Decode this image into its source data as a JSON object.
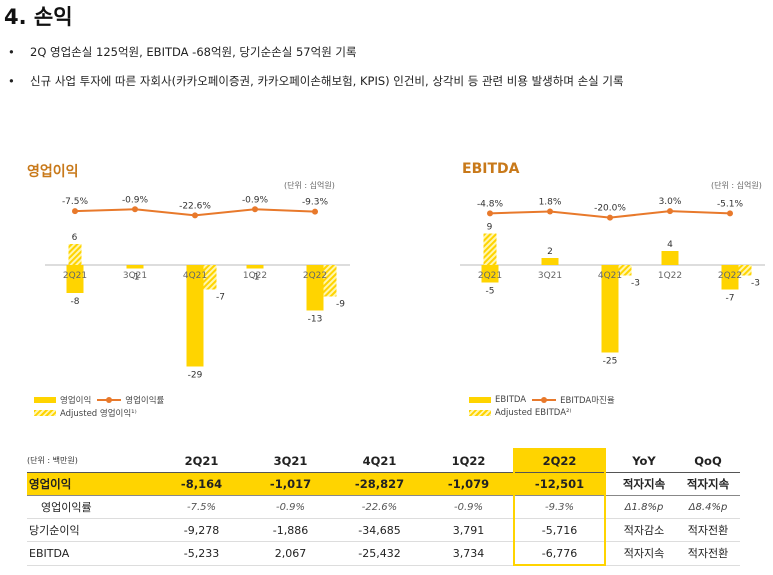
{
  "page": {
    "title": "4. 손익",
    "bullets": [
      "2Q 영업손실 125억원, EBITDA -68억원, 당기순손실 57억원 기록",
      "신규 사업 투자에 따른 자회사(카카오페이증권, 카카오페이손해보험, KPIS) 인건비, 상각비 등 관련 비용 발생하며 손실 기록"
    ]
  },
  "charts": {
    "left": {
      "title": "영업이익",
      "unit": "(단위 : 십억원)",
      "legend": [
        "영업이익",
        "영업이익률",
        "Adjusted 영업이익¹⁾"
      ]
    },
    "right": {
      "title": "EBITDA",
      "unit": "(단위 : 십억원)",
      "legend": [
        "EBITDA",
        "EBITDA마진율",
        "Adjusted EBITDA²⁾"
      ]
    }
  },
  "chart_data": [
    {
      "type": "bar",
      "title": "영업이익",
      "categories": [
        "2Q21",
        "3Q21",
        "4Q21",
        "1Q22",
        "2Q22"
      ],
      "series": [
        {
          "name": "영업이익",
          "values": [
            -8,
            -1,
            -29,
            -1,
            -13
          ]
        },
        {
          "name": "Adjusted 영업이익",
          "values": [
            6,
            null,
            -7,
            null,
            -9
          ]
        },
        {
          "name": "영업이익률",
          "values": [
            "-7.5%",
            "-0.9%",
            "-22.6%",
            "-0.9%",
            "-9.3%"
          ],
          "numeric": [
            -7.5,
            -0.9,
            -22.6,
            -0.9,
            -9.3
          ]
        }
      ],
      "colors": {
        "bar": "#ffd400",
        "line": "#e8792b"
      }
    },
    {
      "type": "bar",
      "title": "EBITDA",
      "categories": [
        "2Q21",
        "3Q21",
        "4Q21",
        "1Q22",
        "2Q22"
      ],
      "series": [
        {
          "name": "EBITDA",
          "values": [
            -5,
            2,
            -25,
            4,
            -7
          ]
        },
        {
          "name": "Adjusted EBITDA",
          "values": [
            9,
            null,
            -3,
            null,
            -3
          ]
        },
        {
          "name": "EBITDA마진율",
          "values": [
            "-4.8%",
            "1.8%",
            "-20.0%",
            "3.0%",
            "-5.1%"
          ],
          "numeric": [
            -4.8,
            1.8,
            -20.0,
            3.0,
            -5.1
          ]
        }
      ],
      "colors": {
        "bar": "#ffd400",
        "line": "#e8792b"
      }
    }
  ],
  "table": {
    "unit": "(단위 : 백만원)",
    "columns": [
      "2Q21",
      "3Q21",
      "4Q21",
      "1Q22",
      "2Q22",
      "YoY",
      "QoQ"
    ],
    "rows": [
      {
        "label": "영업이익",
        "cells": [
          "-8,164",
          "-1,017",
          "-28,827",
          "-1,079",
          "-12,501",
          "적자지속",
          "적자지속"
        ]
      },
      {
        "label": "영업이익률",
        "cells": [
          "-7.5%",
          "-0.9%",
          "-22.6%",
          "-0.9%",
          "-9.3%",
          "Δ1.8%p",
          "Δ8.4%p"
        ]
      },
      {
        "label": "당기순이익",
        "cells": [
          "-9,278",
          "-1,886",
          "-34,685",
          "3,791",
          "-5,716",
          "적자감소",
          "적자전환"
        ]
      },
      {
        "label": "EBITDA",
        "cells": [
          "-5,233",
          "2,067",
          "-25,432",
          "3,734",
          "-6,776",
          "적자지속",
          "적자전환"
        ]
      }
    ]
  }
}
